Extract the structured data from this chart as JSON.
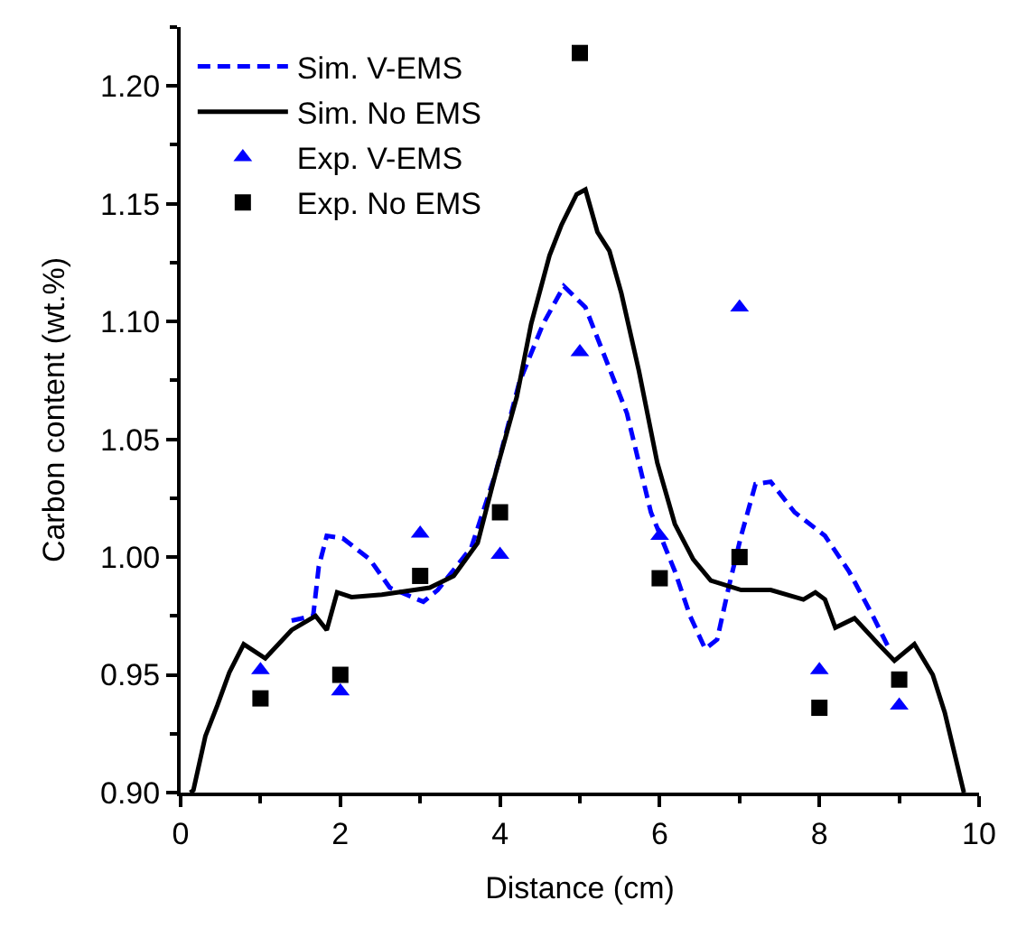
{
  "chart_data": {
    "type": "line",
    "xlabel": "Distance (cm)",
    "ylabel": "Carbon content (wt.%)",
    "xlim": [
      0,
      10
    ],
    "xticks": [
      0,
      2,
      4,
      6,
      8,
      10
    ],
    "ylim": [
      0.9,
      1.225
    ],
    "yticks": [
      {
        "value": 0.9,
        "label": "0.90"
      },
      {
        "value": 0.95,
        "label": "0.95"
      },
      {
        "value": 1.0,
        "label": "1.00"
      },
      {
        "value": 1.05,
        "label": "1.05"
      },
      {
        "value": 1.1,
        "label": "1.10"
      },
      {
        "value": 1.15,
        "label": "1.15"
      },
      {
        "value": 1.2,
        "label": "1.20"
      }
    ],
    "legend": "top left",
    "series": [
      {
        "name": "Sim. V-EMS",
        "line_style": "dashed",
        "marker": "none",
        "color": "#0000ff",
        "x": [
          1.39,
          1.66,
          1.73,
          1.83,
          2.03,
          2.37,
          2.62,
          3.04,
          3.22,
          3.64,
          3.94,
          4.24,
          4.54,
          4.8,
          5.07,
          5.29,
          5.59,
          5.89,
          6.19,
          6.38,
          6.57,
          6.72,
          6.87,
          7.02,
          7.2,
          7.39,
          7.69,
          8.07,
          8.37,
          8.67,
          8.89
        ],
        "values": [
          0.973,
          0.975,
          0.996,
          1.009,
          1.008,
          0.999,
          0.987,
          0.981,
          0.986,
          1.004,
          1.035,
          1.074,
          1.099,
          1.115,
          1.106,
          1.087,
          1.061,
          1.019,
          0.994,
          0.975,
          0.961,
          0.965,
          0.988,
          1.009,
          1.031,
          1.032,
          1.019,
          1.009,
          0.994,
          0.975,
          0.96
        ]
      },
      {
        "name": "Sim. No EMS",
        "line_style": "solid",
        "marker": "none",
        "color": "#000000",
        "x": [
          0.12,
          0.16,
          0.31,
          0.46,
          0.61,
          0.79,
          1.06,
          1.39,
          1.69,
          1.83,
          1.96,
          2.14,
          2.52,
          3.12,
          3.42,
          3.72,
          3.94,
          4.21,
          4.39,
          4.62,
          4.77,
          4.96,
          5.07,
          5.22,
          5.37,
          5.52,
          5.74,
          5.97,
          6.19,
          6.42,
          6.64,
          7.02,
          7.39,
          7.8,
          7.95,
          8.07,
          8.2,
          8.44,
          8.74,
          8.94,
          9.19,
          9.42,
          9.57,
          9.81
        ],
        "values": [
          0.9,
          0.901,
          0.924,
          0.937,
          0.951,
          0.963,
          0.957,
          0.969,
          0.975,
          0.969,
          0.985,
          0.983,
          0.984,
          0.987,
          0.992,
          1.006,
          1.035,
          1.068,
          1.099,
          1.128,
          1.141,
          1.154,
          1.156,
          1.138,
          1.13,
          1.112,
          1.079,
          1.04,
          1.014,
          0.999,
          0.99,
          0.986,
          0.986,
          0.982,
          0.985,
          0.982,
          0.97,
          0.974,
          0.963,
          0.956,
          0.963,
          0.95,
          0.934,
          0.9
        ]
      },
      {
        "name": "Exp. V-EMS",
        "type": "scatter",
        "marker": "triangle",
        "color": "#0000ff",
        "x": [
          1,
          2,
          3,
          4,
          5,
          6,
          7,
          8,
          9
        ],
        "values": [
          0.952,
          0.943,
          1.01,
          1.001,
          1.087,
          1.009,
          1.106,
          0.952,
          0.937
        ]
      },
      {
        "name": "Exp. No EMS",
        "type": "scatter",
        "marker": "square",
        "color": "#000000",
        "x": [
          1,
          2,
          3,
          4,
          5,
          6,
          7,
          8,
          9
        ],
        "values": [
          0.94,
          0.95,
          0.992,
          1.019,
          1.214,
          0.991,
          1.0,
          0.936,
          0.948
        ]
      }
    ]
  }
}
